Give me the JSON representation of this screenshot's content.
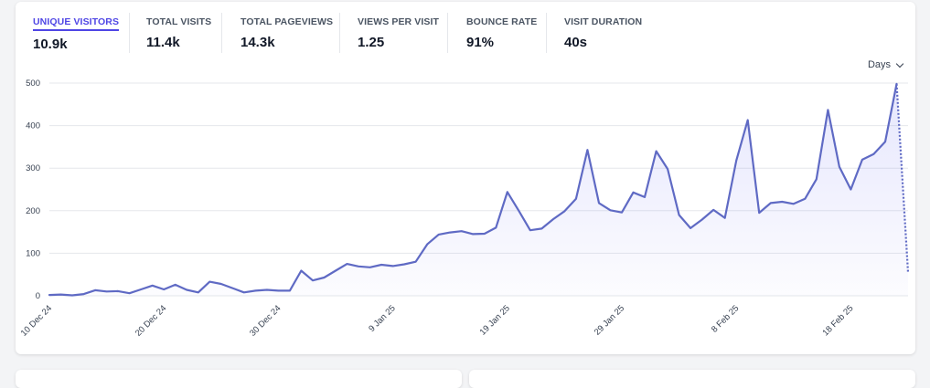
{
  "metrics": [
    {
      "label": "UNIQUE VISITORS",
      "value": "10.9k",
      "active": true
    },
    {
      "label": "TOTAL VISITS",
      "value": "11.4k",
      "active": false
    },
    {
      "label": "TOTAL PAGEVIEWS",
      "value": "14.3k",
      "active": false
    },
    {
      "label": "VIEWS PER VISIT",
      "value": "1.25",
      "active": false
    },
    {
      "label": "BOUNCE RATE",
      "value": "91%",
      "active": false
    },
    {
      "label": "VISIT DURATION",
      "value": "40s",
      "active": false
    }
  ],
  "interval": {
    "label": "Days",
    "icon": "chevron-down-icon"
  },
  "colors": {
    "line": "#5f6ac4",
    "accent": "#4f46e5",
    "grid": "#e5e7eb"
  },
  "chart_data": {
    "type": "line",
    "title": "",
    "xlabel": "",
    "ylabel": "",
    "ylim": [
      0,
      500
    ],
    "yticks": [
      0,
      100,
      200,
      300,
      400,
      500
    ],
    "x_tick_labels": [
      {
        "index": 0,
        "label": "10 Dec 24"
      },
      {
        "index": 10,
        "label": "20 Dec 24"
      },
      {
        "index": 20,
        "label": "30 Dec 24"
      },
      {
        "index": 30,
        "label": "9 Jan 25"
      },
      {
        "index": 40,
        "label": "19 Jan 25"
      },
      {
        "index": 50,
        "label": "29 Jan 25"
      },
      {
        "index": 60,
        "label": "8 Feb 25"
      },
      {
        "index": 70,
        "label": "18 Feb 25"
      }
    ],
    "grid": true,
    "incomplete_last_point": true,
    "series": [
      {
        "values": [
          2,
          3,
          1,
          4,
          13,
          10,
          11,
          6,
          15,
          24,
          15,
          26,
          14,
          8,
          33,
          28,
          18,
          8,
          12,
          14,
          12,
          12,
          59,
          36,
          43,
          59,
          75,
          69,
          67,
          73,
          70,
          74,
          80,
          121,
          144,
          149,
          152,
          145,
          146,
          160,
          244,
          200,
          154,
          158,
          180,
          199,
          228,
          343,
          218,
          201,
          196,
          243,
          232,
          340,
          298,
          190,
          159,
          179,
          202,
          183,
          318,
          413,
          195,
          218,
          221,
          216,
          228,
          274,
          437,
          303,
          250,
          320,
          333,
          362,
          498,
          55
        ]
      }
    ]
  }
}
